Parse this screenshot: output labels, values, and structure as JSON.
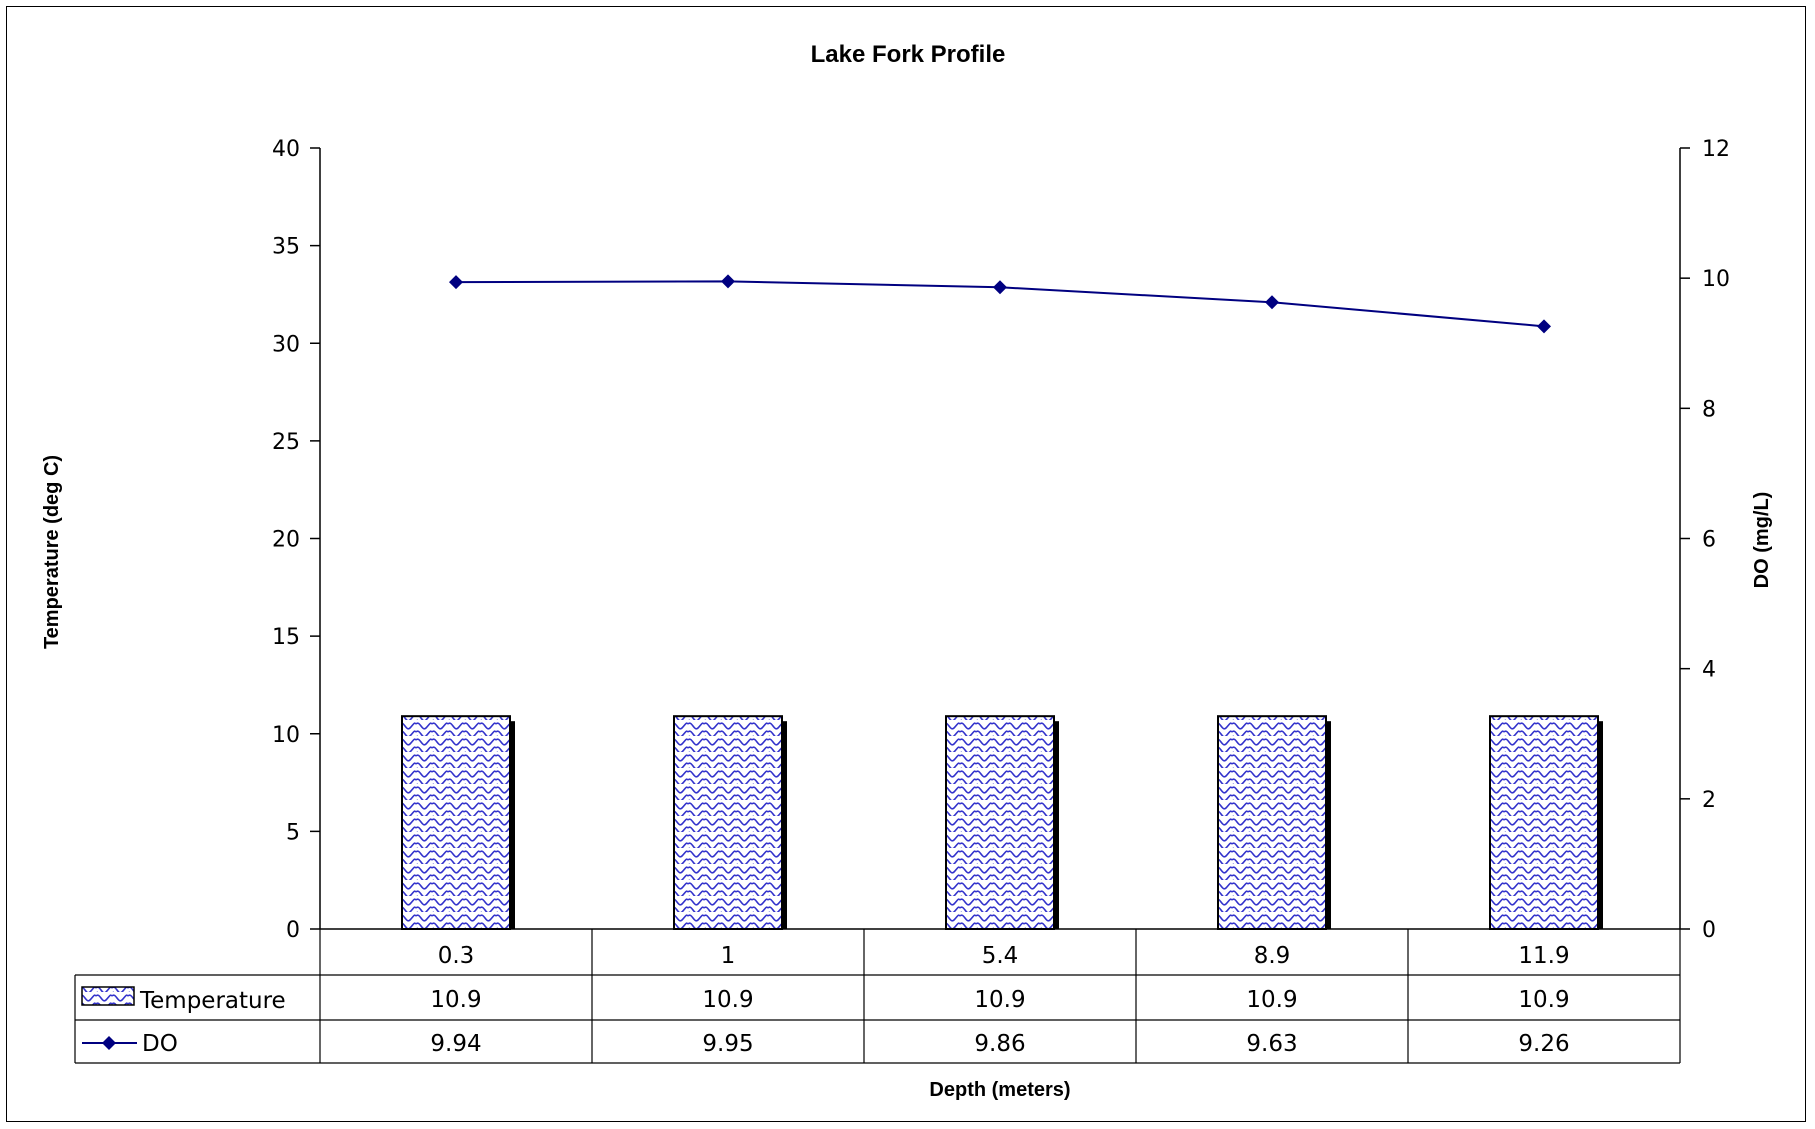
{
  "chart_data": {
    "type": "bar",
    "title": "Lake Fork Profile",
    "xlabel": "Depth (meters)",
    "ylabel": "Temperature (deg C)",
    "y2label": "DO (mg/L)",
    "categories": [
      "0.3",
      "1",
      "5.4",
      "8.9",
      "11.9"
    ],
    "ylim": [
      0,
      40
    ],
    "y_ticks": [
      "0",
      "5",
      "10",
      "15",
      "20",
      "25",
      "30",
      "35",
      "40"
    ],
    "y2lim": [
      0,
      12
    ],
    "y2_ticks": [
      "0",
      "2",
      "4",
      "6",
      "8",
      "10",
      "12"
    ],
    "grid": false,
    "legend": "data table",
    "series": [
      {
        "name": "Temperature",
        "type": "bar",
        "axis": "left",
        "values": [
          10.9,
          10.9,
          10.9,
          10.9,
          10.9
        ],
        "labels": [
          "10.9",
          "10.9",
          "10.9",
          "10.9",
          "10.9"
        ],
        "color": "#3333cc",
        "pattern": "wave"
      },
      {
        "name": "DO",
        "type": "line",
        "axis": "right",
        "values": [
          9.94,
          9.95,
          9.86,
          9.63,
          9.26
        ],
        "labels": [
          "9.94",
          "9.95",
          "9.86",
          "9.63",
          "9.26"
        ],
        "color": "#000080",
        "marker": "diamond"
      }
    ]
  }
}
